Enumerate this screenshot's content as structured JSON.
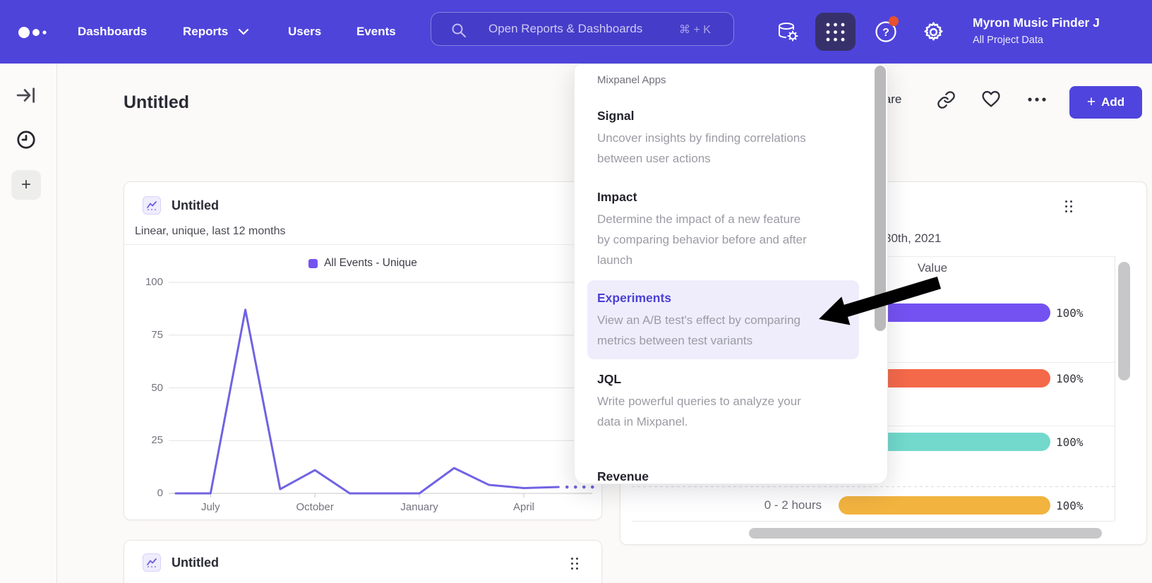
{
  "topbar": {
    "nav": [
      {
        "label": "Dashboards"
      },
      {
        "label": "Reports"
      },
      {
        "label": "Users"
      },
      {
        "label": "Events"
      }
    ],
    "search": {
      "placeholder": "Open Reports & Dashboards",
      "shortcut": "⌘ + K"
    },
    "icons": [
      "data-management-icon",
      "apps-grid-icon",
      "help-icon",
      "settings-gear-icon"
    ],
    "notification_dot_color": "#e8502e",
    "user": {
      "name": "Myron Music Finder J",
      "project": "All Project Data"
    }
  },
  "siderail": {
    "icons": [
      "expand-panel-icon",
      "history-clock-icon",
      "add-plus-icon"
    ]
  },
  "page": {
    "title": "Untitled",
    "actions": {
      "share_label": "Share",
      "add_label": "Add"
    }
  },
  "apps_menu": {
    "header": "Mixpanel Apps",
    "items": [
      {
        "title": "Signal",
        "description": "Uncover insights by finding correlations\nbetween user actions",
        "highlighted": false
      },
      {
        "title": "Impact",
        "description": "Determine the impact of a new feature\nby comparing behavior before and after\nlaunch",
        "highlighted": false
      },
      {
        "title": "Experiments",
        "description": "View an A/B test's effect by comparing\nmetrics between test variants",
        "highlighted": true
      },
      {
        "title": "JQL",
        "description": "Write powerful queries to analyze your\ndata in Mixpanel.",
        "highlighted": false
      },
      {
        "title": "Revenue",
        "description": "",
        "highlighted": false
      }
    ]
  },
  "left_card": {
    "title": "Untitled",
    "subtitle": "Linear, unique, last 12 months",
    "legend": "All Events - Unique"
  },
  "bottom_card": {
    "title": "Untitled"
  },
  "right_card": {
    "date_text": "30th, 2021",
    "column_header": "Value"
  },
  "colors": {
    "brand_purple": "#4e44da",
    "line_purple": "#7063e2",
    "legend_swatch": "#7452f2",
    "highlight_row_bg": "#efedfc",
    "experiments_title": "#4c42d4"
  },
  "chart_data": [
    {
      "type": "line",
      "title": "Untitled",
      "subtitle": "Linear, unique, last 12 months",
      "legend": [
        "All Events - Unique"
      ],
      "x_tick_labels": [
        "July",
        "October",
        "January",
        "April"
      ],
      "x_tick_point_index": [
        1,
        4,
        7,
        10
      ],
      "values": [
        0,
        0,
        87,
        2,
        11,
        0,
        0,
        0,
        12,
        4,
        2.5,
        3
      ],
      "dashed_tail_value": 3,
      "yticks": [
        0,
        25,
        50,
        75,
        100
      ],
      "ylim": [
        0,
        100
      ],
      "grid": true,
      "legend_position": "top",
      "line_color": "#7063e2"
    },
    {
      "type": "bar",
      "orientation": "horizontal",
      "column_header": "Value",
      "xlim_pct": [
        0,
        100
      ],
      "rows": [
        {
          "label": "",
          "value_pct": 100,
          "color": "#7452f2"
        },
        {
          "label": "",
          "value_pct": 100,
          "color": "#f4694a"
        },
        {
          "label": "",
          "value_pct": 100,
          "color": "#72d9cc"
        },
        {
          "label": "0 - 2 hours",
          "value_pct": 100,
          "color": "#f2b33f"
        }
      ]
    }
  ]
}
